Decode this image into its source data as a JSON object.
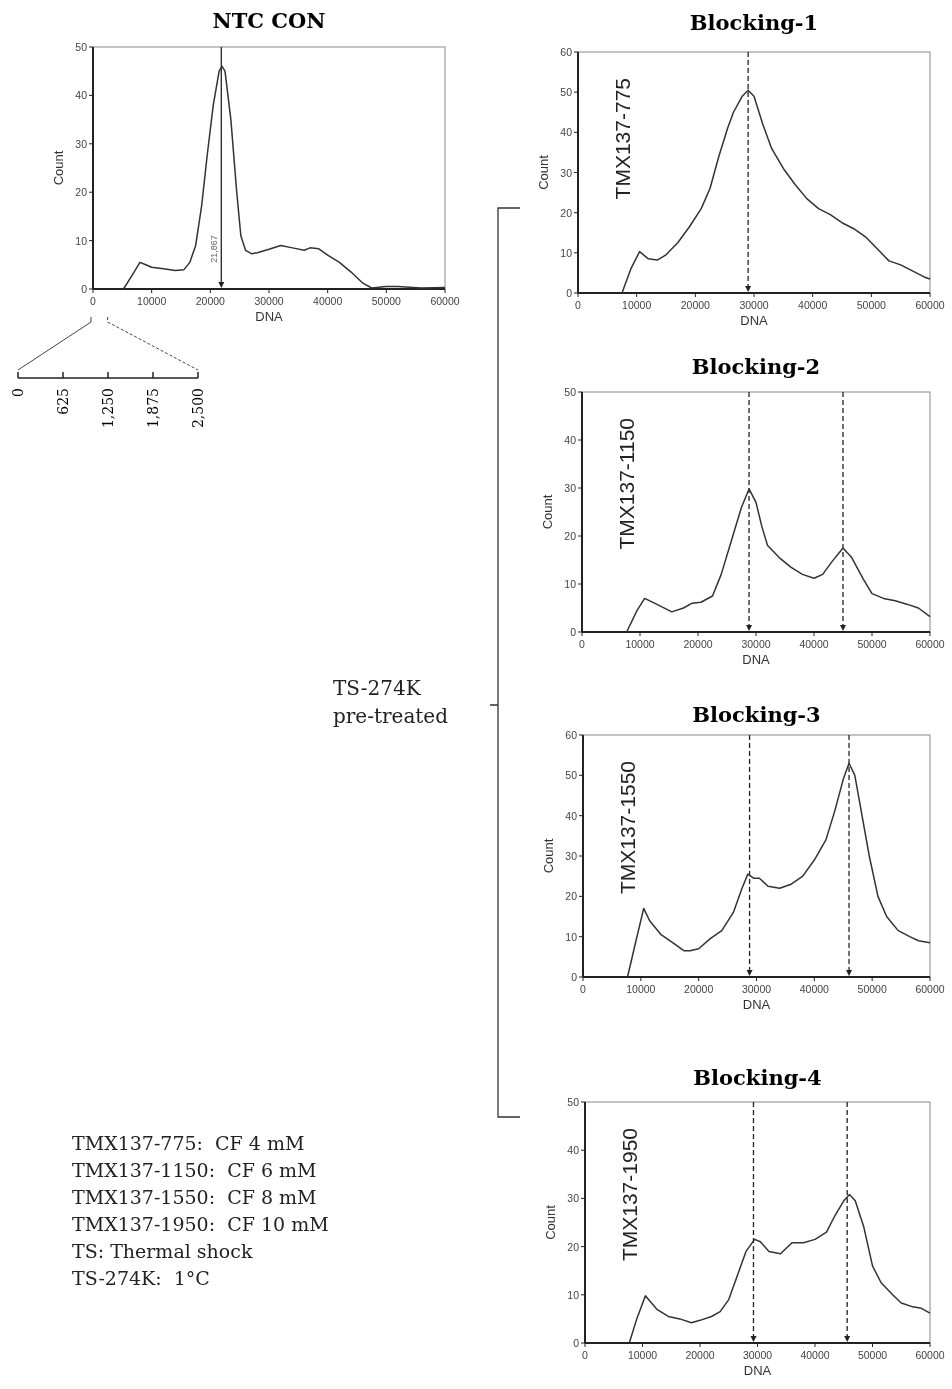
{
  "chart_data": [
    {
      "type": "line",
      "title": "NTC CON",
      "xlabel": "DNA",
      "ylabel": "Count",
      "xlim": [
        0,
        60000
      ],
      "xticks": [
        0,
        10000,
        20000,
        30000,
        40000,
        50000,
        60000
      ],
      "ylim": [
        0,
        50
      ],
      "yticks": [
        0,
        10,
        20,
        30,
        40,
        50
      ],
      "x2lim": [
        0,
        2500
      ],
      "x2ticks": [
        0,
        625,
        {
          "value": 1250,
          "label": "1,250"
        },
        {
          "value": 1875,
          "label": "1,875"
        },
        {
          "value": 2500,
          "label": "2,500"
        }
      ],
      "ref_lines": [
        {
          "axis": "x",
          "value": 21867,
          "label": "21,867",
          "color": "#222222",
          "line_style": "solid"
        }
      ],
      "series": [
        {
          "color": "#333333",
          "x": [
            5200,
            6500,
            8000,
            9000,
            10000,
            12000,
            14000,
            15500,
            16500,
            17500,
            18500,
            19500,
            20500,
            21500,
            22000,
            22500,
            23500,
            24500,
            25200,
            26000,
            27000,
            28000,
            30000,
            32000,
            34000,
            36000,
            37000,
            38500,
            40000,
            42000,
            44000,
            46000,
            47500,
            50000,
            52000,
            56000,
            60000
          ],
          "values": [
            0,
            2.5,
            5.5,
            5,
            4.5,
            4.2,
            3.8,
            4,
            5.5,
            9,
            17,
            28,
            38,
            45,
            46,
            45,
            35,
            20,
            11,
            8,
            7.3,
            7.5,
            8.2,
            9,
            8.5,
            8,
            8.5,
            8.3,
            7,
            5.5,
            3.5,
            1.2,
            0.2,
            0.5,
            0.5,
            0.2,
            0.3
          ]
        }
      ],
      "grid": false,
      "marker": "none",
      "line_style": "solid"
    },
    {
      "type": "line",
      "title": "Blocking-1",
      "xlabel": "DNA",
      "ylabel": "Count",
      "annotations": [
        "TMX137-775"
      ],
      "xlim": [
        0,
        60000
      ],
      "xticks": [
        0,
        10000,
        20000,
        30000,
        40000,
        50000,
        60000
      ],
      "ylim": [
        0,
        60
      ],
      "yticks": [
        0,
        10,
        20,
        30,
        40,
        50,
        60
      ],
      "ref_lines": [
        {
          "axis": "x",
          "value": 29000,
          "color": "#222222",
          "line_style": "dashed"
        }
      ],
      "series": [
        {
          "color": "#333333",
          "x": [
            7500,
            9000,
            10500,
            12000,
            13500,
            15000,
            17000,
            19000,
            21000,
            22500,
            24000,
            25500,
            26500,
            28000,
            29000,
            30000,
            31500,
            33000,
            35000,
            37000,
            39000,
            41000,
            43000,
            45000,
            47000,
            49000,
            51000,
            53000,
            55000,
            57000,
            59000,
            60000
          ],
          "values": [
            0,
            6,
            10.3,
            8.5,
            8.2,
            9.5,
            12.5,
            16.5,
            21,
            26,
            34,
            41,
            45,
            49,
            50.5,
            49,
            42,
            36,
            31,
            27,
            23.5,
            21,
            19.5,
            17.5,
            16,
            14,
            11,
            8,
            7,
            5.5,
            4,
            3.5
          ]
        }
      ],
      "grid": false,
      "marker": "none",
      "line_style": "solid"
    },
    {
      "type": "line",
      "title": "Blocking-2",
      "xlabel": "DNA",
      "ylabel": "Count",
      "annotations": [
        "TMX137-1150"
      ],
      "xlim": [
        0,
        60000
      ],
      "xticks": [
        0,
        10000,
        20000,
        30000,
        40000,
        50000,
        60000
      ],
      "ylim": [
        0,
        50
      ],
      "yticks": [
        0,
        10,
        20,
        30,
        40,
        50
      ],
      "ref_lines": [
        {
          "axis": "x",
          "value": 28800,
          "color": "#222222",
          "line_style": "dashed"
        },
        {
          "axis": "x",
          "value": 45000,
          "color": "#222222",
          "line_style": "dashed"
        }
      ],
      "series": [
        {
          "color": "#333333",
          "x": [
            7700,
            9500,
            10800,
            12500,
            15500,
            17500,
            19000,
            20500,
            22500,
            24000,
            26000,
            27500,
            28800,
            30000,
            31000,
            32000,
            34000,
            36000,
            38000,
            40000,
            41500,
            43000,
            45000,
            46500,
            48500,
            50000,
            52000,
            54000,
            56000,
            58000,
            60000
          ],
          "values": [
            0,
            4.5,
            7,
            6,
            4.2,
            5,
            6,
            6.2,
            7.5,
            12,
            20,
            26,
            29.8,
            27,
            22,
            18,
            15.5,
            13.5,
            12,
            11.2,
            12,
            14.5,
            17.5,
            15.5,
            11,
            8,
            7,
            6.5,
            5.8,
            5,
            3.2
          ]
        }
      ],
      "grid": false,
      "marker": "none",
      "line_style": "solid"
    },
    {
      "type": "line",
      "title": "Blocking-3",
      "xlabel": "DNA",
      "ylabel": "Count",
      "annotations": [
        "TMX137-1550"
      ],
      "xlim": [
        0,
        60000
      ],
      "xticks": [
        0,
        10000,
        20000,
        30000,
        40000,
        50000,
        60000
      ],
      "ylim": [
        0,
        60
      ],
      "yticks": [
        0,
        10,
        20,
        30,
        40,
        50,
        60
      ],
      "ref_lines": [
        {
          "axis": "x",
          "value": 28800,
          "color": "#222222",
          "line_style": "dashed"
        },
        {
          "axis": "x",
          "value": 46000,
          "color": "#222222",
          "line_style": "dashed"
        }
      ],
      "series": [
        {
          "color": "#333333",
          "x": [
            7700,
            9000,
            10500,
            11500,
            13500,
            15500,
            17500,
            18500,
            20000,
            22000,
            24000,
            26000,
            27500,
            28500,
            29500,
            30500,
            32000,
            34000,
            36000,
            38000,
            40000,
            42000,
            43500,
            45000,
            46000,
            47000,
            48000,
            49500,
            51000,
            52500,
            54500,
            56500,
            58000,
            60000
          ],
          "values": [
            0,
            8,
            17,
            14,
            10.5,
            8.5,
            6.5,
            6.5,
            7,
            9.5,
            11.5,
            16,
            22,
            25.5,
            24.5,
            24.5,
            22.5,
            22,
            23,
            25,
            29,
            34,
            41,
            49,
            53,
            50,
            42,
            30,
            20,
            15,
            11.5,
            10,
            9,
            8.5
          ]
        }
      ],
      "grid": false,
      "marker": "none",
      "line_style": "solid"
    },
    {
      "type": "line",
      "title": "Blocking-4",
      "xlabel": "DNA",
      "ylabel": "Count",
      "annotations": [
        "TMX137-1950"
      ],
      "xlim": [
        0,
        60000
      ],
      "xticks": [
        0,
        10000,
        20000,
        30000,
        40000,
        50000,
        60000
      ],
      "ylim": [
        0,
        50
      ],
      "yticks": [
        0,
        10,
        20,
        30,
        40,
        50
      ],
      "ref_lines": [
        {
          "axis": "x",
          "value": 29300,
          "color": "#222222",
          "line_style": "dashed"
        },
        {
          "axis": "x",
          "value": 45600,
          "color": "#222222",
          "line_style": "dashed"
        }
      ],
      "series": [
        {
          "color": "#333333",
          "x": [
            7700,
            9000,
            10500,
            12500,
            14500,
            16500,
            18500,
            20000,
            22000,
            23500,
            25000,
            26500,
            28000,
            29500,
            30500,
            32000,
            34000,
            36000,
            38000,
            40000,
            42000,
            43500,
            45000,
            46000,
            47000,
            48500,
            50000,
            51500,
            53500,
            55000,
            57000,
            58500,
            60000
          ],
          "values": [
            0,
            5,
            9.8,
            7,
            5.5,
            5,
            4.2,
            4.7,
            5.5,
            6.5,
            9,
            14,
            19,
            21.5,
            21,
            19,
            18.5,
            20.8,
            20.8,
            21.5,
            23,
            26.5,
            29.5,
            30.8,
            29.5,
            24,
            16,
            12.5,
            10,
            8.3,
            7.5,
            7.2,
            6.2
          ]
        }
      ],
      "grid": false,
      "marker": "none",
      "line_style": "solid"
    },
    {
      "type": "other",
      "annotations": [
        "TS-274K pre-treated",
        "TMX137-775:  CF 4 mM",
        "TMX137-1150:  CF 6 mM",
        "TMX137-1550:  CF 8 mM",
        "TMX137-1950:  CF 10 mM",
        "TS: Thermal shock",
        "TS-274K:  1°C"
      ]
    }
  ]
}
